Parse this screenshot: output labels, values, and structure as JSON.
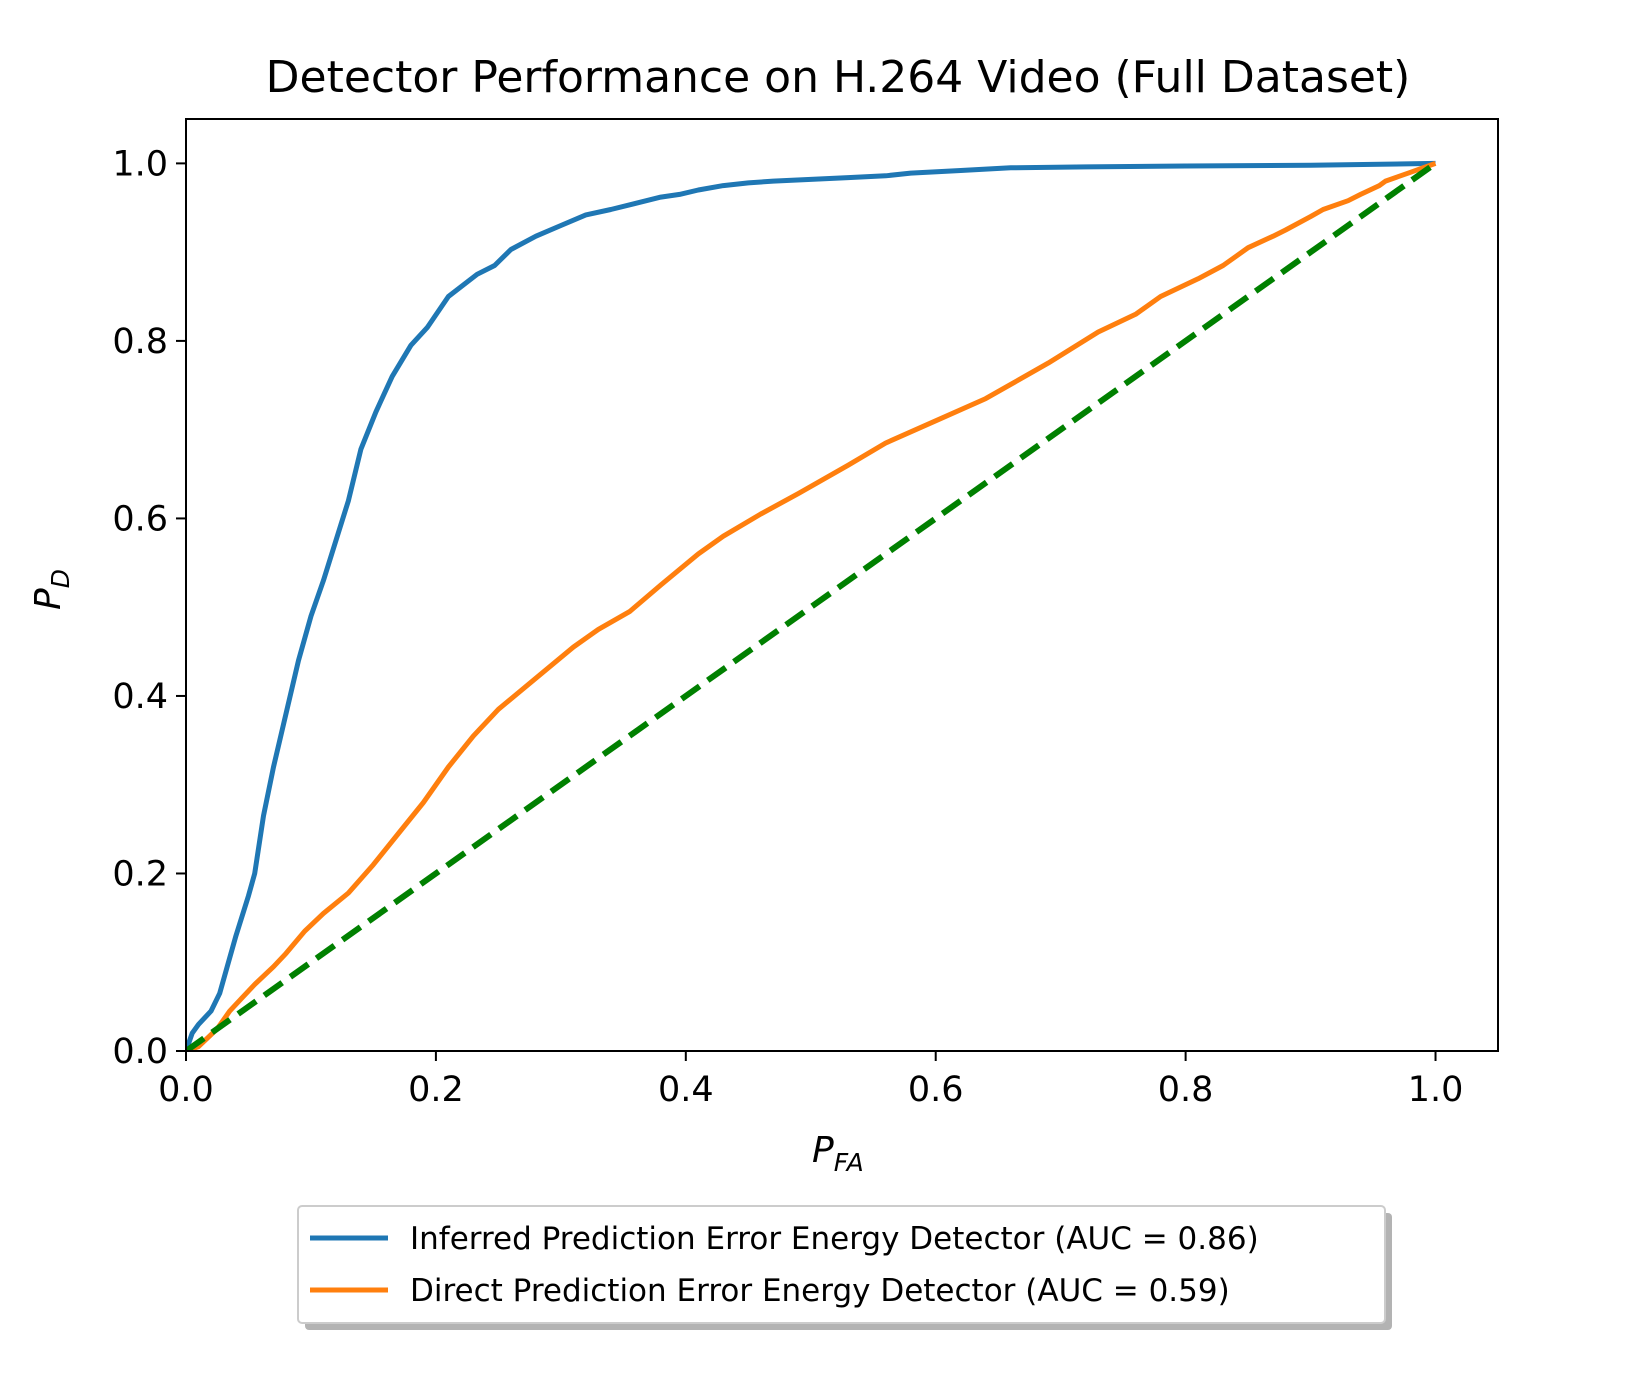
{
  "chart_data": {
    "type": "line",
    "title": "Detector Performance on H.264 Video (Full Dataset)",
    "xlabel": {
      "main": "P",
      "sub": "FA"
    },
    "ylabel": {
      "main": "P",
      "sub": "D"
    },
    "xlim": [
      0,
      1.05
    ],
    "ylim": [
      0,
      1.05
    ],
    "xticks": [
      "0.0",
      "0.2",
      "0.4",
      "0.6",
      "0.8",
      "1.0"
    ],
    "yticks": [
      "0.0",
      "0.2",
      "0.4",
      "0.6",
      "0.8",
      "1.0"
    ],
    "xtick_values": [
      0,
      0.2,
      0.4,
      0.6,
      0.8,
      1.0
    ],
    "ytick_values": [
      0,
      0.2,
      0.4,
      0.6,
      0.8,
      1.0
    ],
    "grid": false,
    "legend_placement": "below plot, centered",
    "series": [
      {
        "name": "Inferred Prediction Error Energy Detector (AUC = 0.86)",
        "color": "#1f77b4",
        "style": "solid",
        "x": [
          0,
          0.005,
          0.01,
          0.02,
          0.027,
          0.033,
          0.04,
          0.05,
          0.055,
          0.062,
          0.07,
          0.08,
          0.09,
          0.1,
          0.11,
          0.12,
          0.13,
          0.14,
          0.152,
          0.165,
          0.18,
          0.193,
          0.21,
          0.233,
          0.247,
          0.26,
          0.28,
          0.3,
          0.32,
          0.34,
          0.36,
          0.38,
          0.395,
          0.41,
          0.43,
          0.45,
          0.47,
          0.5,
          0.53,
          0.56,
          0.58,
          0.62,
          0.66,
          0.72,
          0.8,
          0.9,
          1.0
        ],
        "y": [
          0.0,
          0.02,
          0.03,
          0.045,
          0.065,
          0.095,
          0.13,
          0.175,
          0.2,
          0.265,
          0.32,
          0.38,
          0.44,
          0.49,
          0.53,
          0.575,
          0.62,
          0.678,
          0.72,
          0.76,
          0.795,
          0.815,
          0.85,
          0.875,
          0.885,
          0.903,
          0.918,
          0.93,
          0.942,
          0.948,
          0.955,
          0.962,
          0.965,
          0.97,
          0.975,
          0.978,
          0.98,
          0.982,
          0.984,
          0.986,
          0.989,
          0.992,
          0.995,
          0.996,
          0.997,
          0.998,
          1.0
        ]
      },
      {
        "name": "Direct Prediction Error Energy Detector (AUC = 0.59)",
        "color": "#ff7f0e",
        "style": "solid",
        "x": [
          0,
          0.01,
          0.025,
          0.035,
          0.045,
          0.055,
          0.07,
          0.08,
          0.095,
          0.11,
          0.13,
          0.15,
          0.17,
          0.19,
          0.21,
          0.23,
          0.25,
          0.28,
          0.31,
          0.33,
          0.355,
          0.38,
          0.41,
          0.43,
          0.46,
          0.49,
          0.53,
          0.56,
          0.6,
          0.64,
          0.69,
          0.73,
          0.76,
          0.78,
          0.81,
          0.83,
          0.84,
          0.85,
          0.87,
          0.88,
          0.9,
          0.91,
          0.93,
          0.94,
          0.955,
          0.96,
          0.97,
          0.98,
          0.99,
          1.0
        ],
        "y": [
          0.0,
          0.005,
          0.025,
          0.045,
          0.06,
          0.075,
          0.095,
          0.11,
          0.135,
          0.155,
          0.178,
          0.21,
          0.245,
          0.28,
          0.32,
          0.355,
          0.385,
          0.42,
          0.455,
          0.475,
          0.495,
          0.525,
          0.56,
          0.58,
          0.605,
          0.628,
          0.66,
          0.685,
          0.71,
          0.735,
          0.775,
          0.81,
          0.83,
          0.85,
          0.87,
          0.885,
          0.895,
          0.905,
          0.918,
          0.925,
          0.94,
          0.948,
          0.958,
          0.965,
          0.975,
          0.98,
          0.985,
          0.99,
          0.995,
          1.0
        ]
      },
      {
        "color": "#008000",
        "style": "dashed",
        "x": [
          0,
          1.0
        ],
        "y": [
          0,
          1.0
        ]
      }
    ]
  }
}
